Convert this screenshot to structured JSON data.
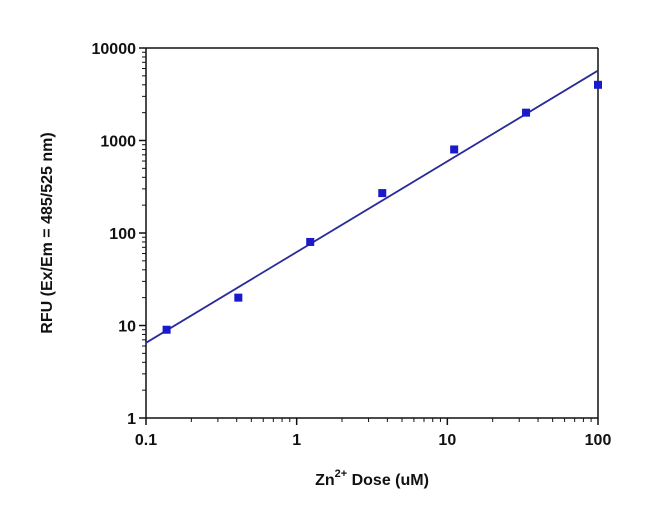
{
  "chart_data": {
    "type": "scatter",
    "xscale": "log",
    "yscale": "log",
    "xlim": [
      0.1,
      100
    ],
    "ylim": [
      1,
      10000
    ],
    "xticks": [
      "0.1",
      "1",
      "10",
      "100"
    ],
    "yticks": [
      "1",
      "10",
      "100",
      "1000",
      "10000"
    ],
    "xlabel": {
      "base": "Zn",
      "superscript": "2+",
      "rest": " Dose (uM)"
    },
    "ylabel": "RFU (Ex/Em = 485/525 nm)",
    "grid": false,
    "legend": false,
    "series": [
      {
        "marker": "square",
        "color": "#1a1acc",
        "x": [
          0.137,
          0.41,
          1.23,
          3.7,
          11.1,
          33.3,
          100
        ],
        "y": [
          9,
          20,
          80,
          270,
          800,
          2000,
          4000
        ]
      }
    ],
    "fit_line": {
      "type": "linear-loglog",
      "color": "#2a2a9a",
      "x": [
        0.1,
        100
      ],
      "y": [
        6.5,
        5700
      ]
    }
  }
}
